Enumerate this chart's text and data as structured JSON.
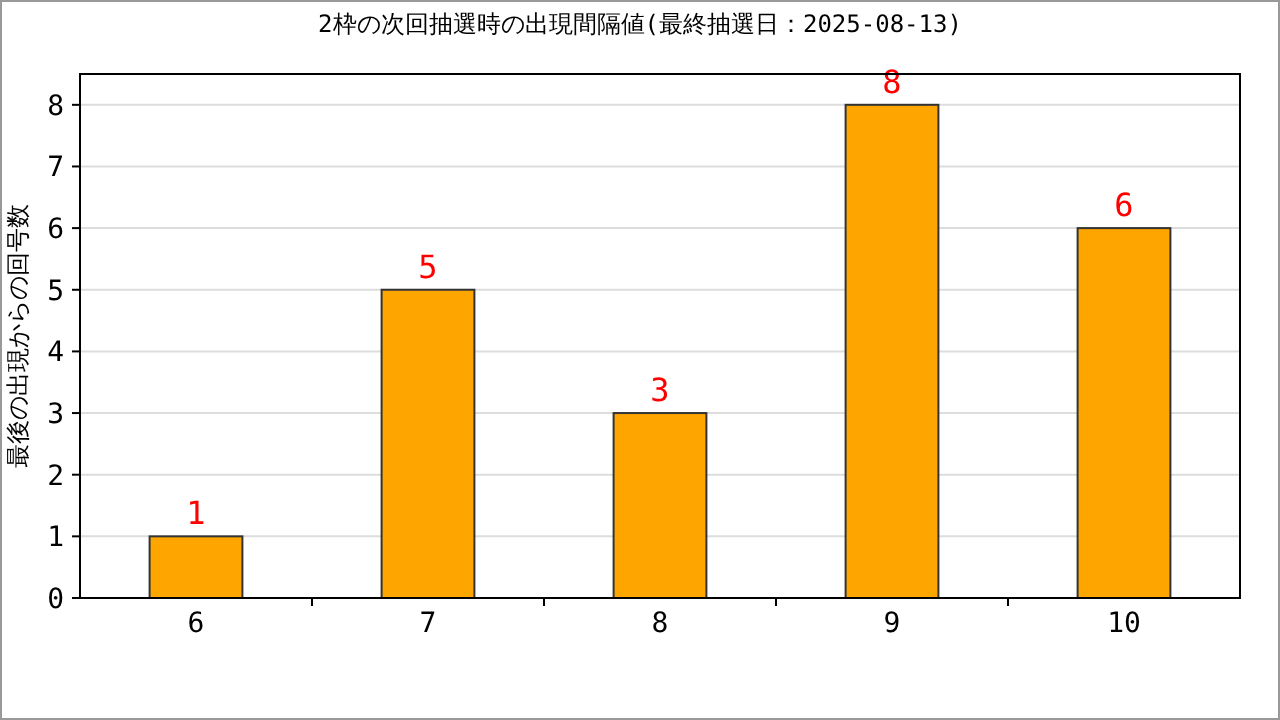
{
  "chart_data": {
    "type": "bar",
    "title": "2枠の次回抽選時の出現間隔値(最終抽選日：2025-08-13)",
    "ylabel": "最後の出現からの回号数",
    "categories": [
      "6",
      "7",
      "8",
      "9",
      "10"
    ],
    "values": [
      1,
      5,
      3,
      8,
      6
    ],
    "color": "#ffa500",
    "ylim": [
      0,
      8.5
    ],
    "yticks": [
      0,
      1,
      2,
      3,
      4,
      5,
      6,
      7,
      8
    ],
    "grid": "y",
    "data_labels": true
  }
}
